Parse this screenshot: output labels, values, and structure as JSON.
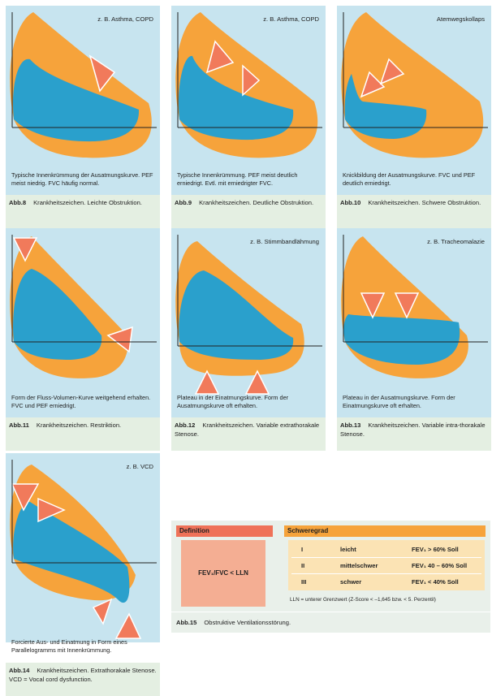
{
  "colors": {
    "orange": "#f6a33b",
    "blue": "#2aa0cc",
    "panel_bg": "#c7e4ef",
    "arrow": "#f17a5b",
    "caption_bg": "#e4efe2"
  },
  "figures": [
    {
      "label": "z. B. Asthma, COPD",
      "description": "Typische Innenkrümmung der Ausatmungskurve. PEF meist niedrig. FVC häufig normal.",
      "abb": "Abb.8",
      "caption": "Krankheitszeichen. Leichte Obstruktion."
    },
    {
      "label": "z. B. Asthma, COPD",
      "description": "Typische Innenkrümmung. PEF meist deutlich erniedrigt. Evtl. mit erniedrigter FVC.",
      "abb": "Abb.9",
      "caption": "Krankheitszeichen. Deutliche Obstruktion."
    },
    {
      "label": "Atemwegskollaps",
      "description": "Knickbildung der Ausatmungskurve. FVC und PEF deutlich erniedrigt.",
      "abb": "Abb.10",
      "caption": "Krankheitszeichen. Schwere Obstruktion."
    },
    {
      "label": "",
      "description": "Form der Fluss-Volumen-Kurve weitgehend erhalten. FVC und PEF erniedrigt.",
      "abb": "Abb.11",
      "caption": "Krankheitszeichen. Restriktion."
    },
    {
      "label": "z. B. Stimmbandlähmung",
      "description": "Plateau in der Einatmungskurve. Form der Ausatmungskurve oft erhalten.",
      "abb": "Abb.12",
      "caption": "Krankheitszeichen. Variable extrathorakale Stenose."
    },
    {
      "label": "z. B. Tracheomalazie",
      "description": "Plateau in der Ausatmungskurve. Form der Einatmungskurve oft erhalten.",
      "abb": "Abb.13",
      "caption": "Krankheitszeichen. Variable intra-thorakale Stenose."
    },
    {
      "label": "z. B. VCD",
      "description": "Forcierte Aus- und Einatmung in Form eines Parallelogramms mit Innenkrümmung.",
      "abb": "Abb.14",
      "caption": "Krankheitszeichen. Extrathorakale Stenose. VCD = Vocal cord dysfunction."
    }
  ],
  "table": {
    "definition_header": "Definition",
    "definition_text": "FEV₁/FVC < LLN",
    "severity_header": "Schweregrad",
    "rows": [
      {
        "grade": "I",
        "name": "leicht",
        "value": "FEV₁ > 60% Soll"
      },
      {
        "grade": "II",
        "name": "mittelschwer",
        "value": "FEV₁ 40 – 60% Soll"
      },
      {
        "grade": "III",
        "name": "schwer",
        "value": "FEV₁ < 40% Soll"
      }
    ],
    "footnote": "LLN = unterer Grenzwert (Z-Score < –1,645 bzw. < 5. Perzentil)",
    "abb": "Abb.15",
    "caption": "Obstruktive Ventilationsstörung."
  }
}
